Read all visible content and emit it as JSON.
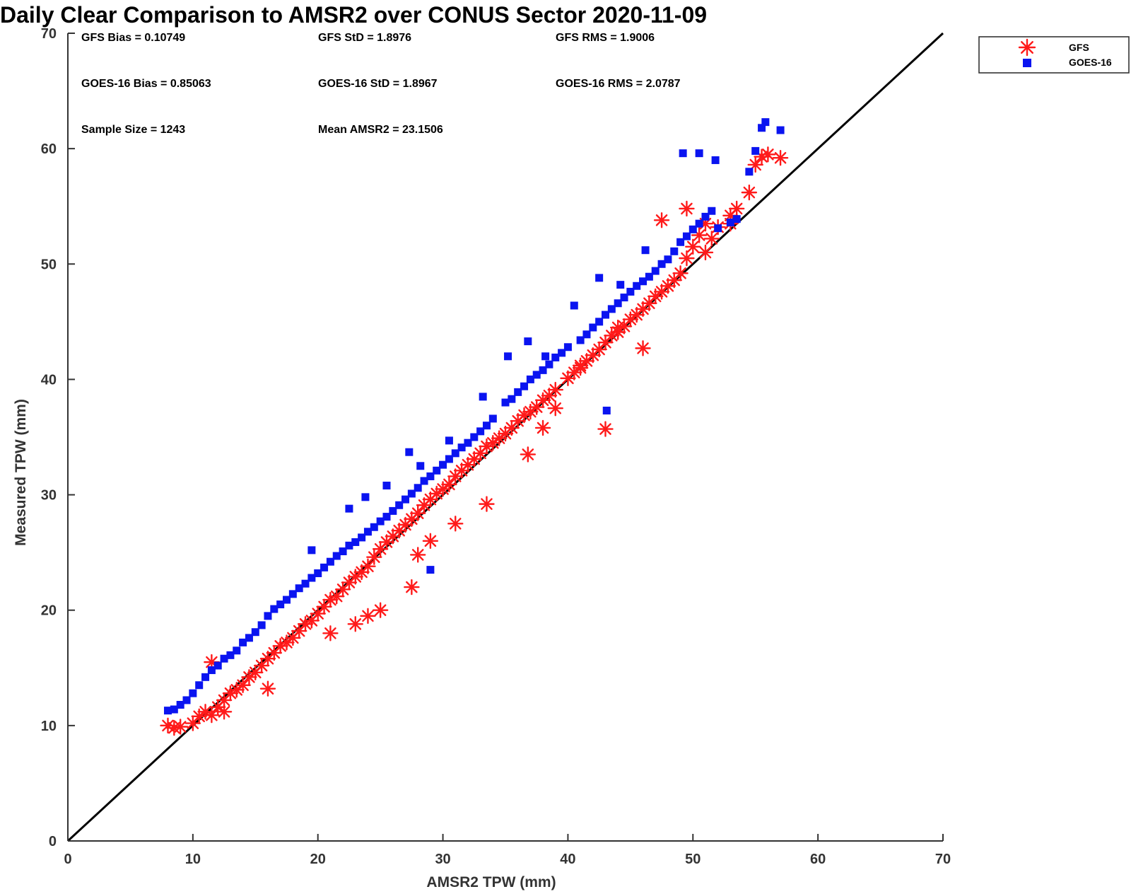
{
  "chart_data": {
    "type": "scatter",
    "title": "Daily Clear Comparison to AMSR2 over CONUS Sector 2020-11-09",
    "xlabel": "AMSR2 TPW (mm)",
    "ylabel": "Measured TPW (mm)",
    "xlim": [
      0,
      70
    ],
    "ylim": [
      0,
      70
    ],
    "xticks": [
      "0",
      "10",
      "20",
      "30",
      "40",
      "50",
      "60",
      "70"
    ],
    "yticks": [
      "0",
      "10",
      "20",
      "30",
      "40",
      "50",
      "60",
      "70"
    ],
    "grid": false,
    "legend_position": "outside top-right",
    "reference_line": [
      [
        0,
        0
      ],
      [
        70,
        70
      ]
    ],
    "stats": [
      "GFS Bias = 0.10749",
      "GFS StD = 1.8976",
      "GFS RMS = 1.9006",
      "GOES-16 Bias = 0.85063",
      "GOES-16 StD = 1.8967",
      "GOES-16 RMS = 2.0787",
      "Sample Size = 1243",
      "Mean AMSR2 = 23.1506"
    ],
    "series": [
      {
        "name": "GFS",
        "marker": "asterisk",
        "color": "#ff1a1a",
        "x": [
          8,
          8.5,
          9,
          10,
          10.5,
          11,
          11.5,
          12,
          12.5,
          13,
          13.5,
          14,
          14.5,
          15,
          15.5,
          16,
          16.5,
          17,
          17.5,
          18,
          18.5,
          19,
          19.5,
          20,
          20.5,
          21,
          21.5,
          22,
          22.5,
          23,
          23.5,
          24,
          24.5,
          25,
          25.5,
          26,
          26.5,
          27,
          27.5,
          28,
          28.5,
          29,
          29.5,
          30,
          30.5,
          31,
          31.5,
          32,
          32.5,
          33,
          33.5,
          34,
          34.5,
          35,
          35.5,
          36,
          36.5,
          37,
          37.5,
          38,
          38.5,
          39,
          40,
          40.5,
          41,
          41.5,
          42,
          42.5,
          43,
          43.5,
          44,
          44.5,
          45,
          45.5,
          46,
          46.5,
          47,
          47.5,
          48,
          48.5,
          49,
          49.5,
          50,
          50.5,
          51,
          51.5,
          52,
          53,
          53.5,
          54.5,
          55,
          55.5,
          56,
          57,
          43,
          11.5,
          12.5,
          16,
          21,
          23,
          24,
          25,
          27.5,
          28,
          29,
          31,
          33.5,
          36.8,
          38,
          39,
          41,
          44,
          46,
          47.5,
          49.5,
          51,
          53
        ],
        "y": [
          10,
          9.8,
          9.9,
          10.2,
          10.8,
          11.2,
          10.9,
          11.6,
          12.2,
          12.8,
          13.1,
          13.5,
          14.2,
          14.6,
          15.2,
          15.8,
          16.3,
          16.9,
          17.2,
          17.6,
          18.2,
          18.8,
          19.1,
          19.7,
          20.3,
          20.9,
          21.2,
          21.8,
          22.4,
          22.9,
          23.3,
          23.8,
          24.6,
          25.3,
          25.9,
          26.4,
          26.9,
          27.4,
          27.9,
          28.4,
          29.1,
          29.6,
          30.1,
          30.5,
          30.9,
          31.6,
          32.1,
          32.6,
          33.1,
          33.6,
          34.2,
          34.5,
          34.9,
          35.3,
          35.8,
          36.4,
          36.9,
          37.2,
          37.6,
          38.2,
          38.6,
          39.1,
          40.1,
          40.6,
          41.2,
          41.6,
          42.1,
          42.6,
          43.2,
          43.8,
          44.1,
          44.6,
          45.2,
          45.6,
          46.1,
          46.6,
          47.2,
          47.6,
          48.1,
          48.6,
          49.2,
          50.5,
          51.5,
          52.5,
          53.5,
          52.2,
          53.2,
          54.2,
          54.8,
          56.2,
          58.6,
          59.3,
          59.5,
          59.2,
          35.7,
          15.5,
          11.2,
          13.2,
          18,
          18.8,
          19.5,
          20,
          22,
          24.8,
          26,
          27.5,
          29.2,
          33.5,
          35.8,
          37.5,
          41,
          44.5,
          42.7,
          53.8,
          54.8,
          51,
          53.5
        ]
      },
      {
        "name": "GOES-16",
        "marker": "square",
        "color": "#0a14f0",
        "x": [
          8,
          8.5,
          9,
          9.5,
          10,
          10.5,
          11,
          11.5,
          12,
          12.5,
          13,
          13.5,
          14,
          14.5,
          15,
          15.5,
          16,
          16.5,
          17,
          17.5,
          18,
          18.5,
          19,
          19.5,
          20,
          20.5,
          21,
          21.5,
          22,
          22.5,
          23,
          23.5,
          24,
          24.5,
          25,
          25.5,
          26,
          26.5,
          27,
          27.5,
          28,
          28.5,
          29,
          29.5,
          30,
          30.5,
          31,
          31.5,
          32,
          32.5,
          33,
          33.5,
          34,
          35,
          35.5,
          36,
          36.5,
          37,
          37.5,
          38,
          38.5,
          39,
          39.5,
          40,
          41,
          41.5,
          42,
          42.5,
          43,
          43.5,
          44,
          44.5,
          45,
          45.5,
          46,
          46.5,
          47,
          47.5,
          48,
          48.5,
          49,
          49.5,
          50,
          50.5,
          51,
          51.5,
          52,
          53,
          53.5,
          54.5,
          55,
          55.5,
          55.8,
          57,
          49.2,
          50.5,
          51.8,
          43.1,
          19.5,
          22.5,
          23.8,
          25.5,
          27.3,
          28.2,
          29,
          30.5,
          33.2,
          35.2,
          36.8,
          38.2,
          40.5,
          42.5,
          44.2,
          46.2
        ],
        "y": [
          11.3,
          11.4,
          11.8,
          12.2,
          12.8,
          13.5,
          14.2,
          14.8,
          15.2,
          15.8,
          16.1,
          16.5,
          17.2,
          17.6,
          18.1,
          18.7,
          19.5,
          20.1,
          20.5,
          20.9,
          21.4,
          21.9,
          22.3,
          22.8,
          23.2,
          23.7,
          24.2,
          24.7,
          25.1,
          25.6,
          25.9,
          26.3,
          26.8,
          27.2,
          27.7,
          28.1,
          28.6,
          29.1,
          29.6,
          30.1,
          30.6,
          31.2,
          31.6,
          32.1,
          32.6,
          33.1,
          33.6,
          34.1,
          34.5,
          35,
          35.5,
          36,
          36.6,
          38,
          38.3,
          38.9,
          39.4,
          40,
          40.4,
          40.8,
          41.3,
          41.9,
          42.3,
          42.8,
          43.4,
          43.9,
          44.5,
          45,
          45.6,
          46.1,
          46.6,
          47.1,
          47.6,
          48.1,
          48.5,
          48.9,
          49.4,
          50,
          50.4,
          51.1,
          51.9,
          52.4,
          53,
          53.5,
          54.1,
          54.6,
          53.1,
          53.6,
          53.9,
          58,
          59.8,
          61.8,
          62.3,
          61.6,
          59.6,
          59.6,
          59,
          37.3,
          25.2,
          28.8,
          29.8,
          30.8,
          33.7,
          32.5,
          23.5,
          34.7,
          38.5,
          42,
          43.3,
          42,
          46.4,
          48.8,
          48.2,
          51.2
        ]
      }
    ]
  }
}
